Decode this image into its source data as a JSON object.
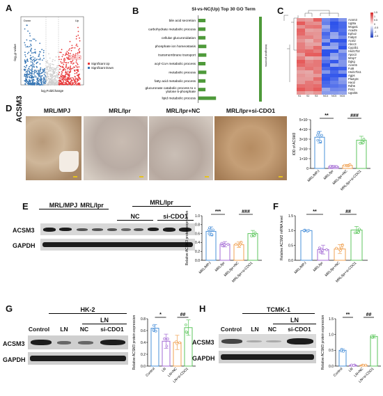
{
  "panels": {
    "A": {
      "letter": "A",
      "legend_up_label": "Up",
      "legend_down_label": "Down",
      "ylabel": "-log₁₀p-value",
      "xlabel": "log₂FoldChange",
      "legend": [
        "Significant Up",
        "Significant Down"
      ],
      "highlight_gene": "Acsm3",
      "colors": {
        "up": "#e8393a",
        "down": "#3a78b5",
        "ns": "#cfcfcf"
      }
    },
    "B": {
      "letter": "B",
      "title": "SI-vs-NC(Up) Top 30 GO Term",
      "side_label": "biological process",
      "terms": [
        "bile acid secretion",
        "carbohydrate metabolic process",
        "cellular glucuronidation",
        "phosphate ion homeostasis",
        "transmembrane transport",
        "acyl-CoA metabolic process",
        "metabolic process",
        "fatty acid metabolic process",
        "glucuronate catabolic process to xylulose 5-phosphate",
        "lipid metabolic process"
      ],
      "bar_values": [
        0.4,
        0.4,
        0.4,
        0.45,
        0.45,
        0.4,
        0.45,
        0.4,
        0.4,
        1.0
      ],
      "bar_color": "#4e9a3a"
    },
    "C": {
      "letter": "C",
      "genes": [
        "Acsm3",
        "Ugt8a",
        "Mogat1",
        "Acadm",
        "Ephx2",
        "Fabp3",
        "Acot2",
        "Abcc3",
        "Cyp2b1",
        "Hsd17b2",
        "Apoc3",
        "Mmp7",
        "Dgkg",
        "Acsm5",
        "Fut8",
        "Hsd17b11",
        "Agps",
        "Pla2g2c",
        "Hao2",
        "Rdh5",
        "Pck1",
        "Ugt2b5"
      ],
      "col_labels": [
        "S1",
        "S2",
        "S3",
        "NC4",
        "NC5",
        "NC6"
      ],
      "scale_ticks": [
        "1.5",
        "1",
        "0.5",
        "0",
        "-0.5",
        "-1",
        "-1.5"
      ]
    },
    "D": {
      "letter": "D",
      "row_label": "ACSM3",
      "group_titles": [
        "MRL/MPJ",
        "MRL/lpr",
        "MRL/lpr+NC",
        "MRL/lpr+si-CDO1"
      ],
      "chart": {
        "ylabel": "IOD of ACSM3",
        "yticks": [
          "0",
          "1×10⁷",
          "2×10⁷",
          "3×10⁷",
          "4×10⁷",
          "5×10⁷"
        ],
        "categories": [
          "MRL/MPJ",
          "MRL/lpr",
          "MRL/lpr+NC",
          "MRL/lpr+si-CDO1"
        ],
        "values": [
          3.2,
          0.2,
          0.3,
          2.9
        ],
        "errors": [
          0.6,
          0.1,
          0.1,
          0.4
        ],
        "ymax": 5,
        "sig": [
          "**",
          "###"
        ]
      }
    },
    "E": {
      "letter": "E",
      "header_top": "MRL/lpr",
      "lanes": [
        "MRL/MPJ",
        "MRL/lpr",
        "NC",
        "si-CDO1"
      ],
      "rows": [
        "ACSM3",
        "GAPDH"
      ],
      "chart": {
        "ylabel": "Relative ACSM3 protein expression",
        "yticks": [
          "0.0",
          "0.2",
          "0.4",
          "0.6",
          "0.8",
          "1.0"
        ],
        "categories": [
          "MRL/MPJ",
          "MRL/lpr",
          "MRL/lpr+NC",
          "MRL/lpr+si-CDO1"
        ],
        "values": [
          0.65,
          0.36,
          0.35,
          0.6
        ],
        "errors": [
          0.1,
          0.06,
          0.06,
          0.07
        ],
        "ymax": 1.0,
        "sig": [
          "***",
          "###"
        ]
      }
    },
    "F": {
      "letter": "F",
      "chart": {
        "ylabel": "Relative ACSM3 mRNA level",
        "yticks": [
          "0.0",
          "0.5",
          "1.0",
          "1.5"
        ],
        "categories": [
          "MRL/MPJ",
          "MRL/lpr",
          "MRL/lpr+NC",
          "MRL/lpr+si-CDO1"
        ],
        "values": [
          1.0,
          0.36,
          0.38,
          1.02
        ],
        "errors": [
          0.02,
          0.15,
          0.15,
          0.12
        ],
        "ymax": 1.5,
        "sig": [
          "**",
          "##"
        ]
      }
    },
    "G": {
      "letter": "G",
      "cell_line": "HK-2",
      "header_top": "LN",
      "lanes": [
        "Control",
        "LN",
        "NC",
        "si-CDO1"
      ],
      "rows": [
        "ACSM3",
        "GAPDH"
      ],
      "chart": {
        "ylabel": "Relative ACSM3 protein expression",
        "yticks": [
          "0.0",
          "0.2",
          "0.4",
          "0.6",
          "0.8"
        ],
        "categories": [
          "Control",
          "LN",
          "LN+NC",
          "LN+si-CDO1"
        ],
        "values": [
          0.64,
          0.42,
          0.4,
          0.65
        ],
        "errors": [
          0.06,
          0.12,
          0.12,
          0.13
        ],
        "ymax": 0.8,
        "sig": [
          "*",
          "##"
        ]
      }
    },
    "H": {
      "letter": "H",
      "cell_line": "TCMK-1",
      "header_top": "LN",
      "lanes": [
        "Control",
        "LN",
        "NC",
        "si-CDO1"
      ],
      "rows": [
        "ACSM3",
        "GAPDH"
      ],
      "chart": {
        "ylabel": "Relative ACSM3 protein expression",
        "yticks": [
          "0.0",
          "0.5",
          "1.0",
          "1.5"
        ],
        "categories": [
          "Control",
          "LN",
          "LN+NC",
          "LN+si-CDO1"
        ],
        "values": [
          0.5,
          0.03,
          0.03,
          0.94
        ],
        "errors": [
          0.04,
          0.01,
          0.01,
          0.05
        ],
        "ymax": 1.5,
        "sig": [
          "**",
          "##"
        ]
      }
    }
  },
  "chart_data": [
    {
      "type": "bar",
      "title": "",
      "ylabel": "IOD of ACSM3",
      "categories": [
        "MRL/MPJ",
        "MRL/lpr",
        "MRL/lpr+NC",
        "MRL/lpr+si-CDO1"
      ],
      "values": [
        32000000.0,
        2000000.0,
        3000000.0,
        29000000.0
      ],
      "ylim": [
        0,
        50000000.0
      ]
    },
    {
      "type": "bar",
      "title": "",
      "ylabel": "Relative ACSM3 protein expression",
      "categories": [
        "MRL/MPJ",
        "MRL/lpr",
        "MRL/lpr+NC",
        "MRL/lpr+si-CDO1"
      ],
      "values": [
        0.65,
        0.36,
        0.35,
        0.6
      ],
      "ylim": [
        0,
        1.0
      ]
    },
    {
      "type": "bar",
      "title": "",
      "ylabel": "Relative ACSM3 mRNA level",
      "categories": [
        "MRL/MPJ",
        "MRL/lpr",
        "MRL/lpr+NC",
        "MRL/lpr+si-CDO1"
      ],
      "values": [
        1.0,
        0.36,
        0.38,
        1.02
      ],
      "ylim": [
        0,
        1.5
      ]
    },
    {
      "type": "bar",
      "title": "",
      "ylabel": "Relative ACSM3 protein expression",
      "categories": [
        "Control",
        "LN",
        "LN+NC",
        "LN+si-CDO1"
      ],
      "values": [
        0.64,
        0.42,
        0.4,
        0.65
      ],
      "ylim": [
        0,
        0.8
      ]
    },
    {
      "type": "bar",
      "title": "",
      "ylabel": "Relative ACSM3 protein expression",
      "categories": [
        "Control",
        "LN",
        "LN+NC",
        "LN+si-CDO1"
      ],
      "values": [
        0.5,
        0.03,
        0.03,
        0.94
      ],
      "ylim": [
        0,
        1.5
      ]
    }
  ]
}
